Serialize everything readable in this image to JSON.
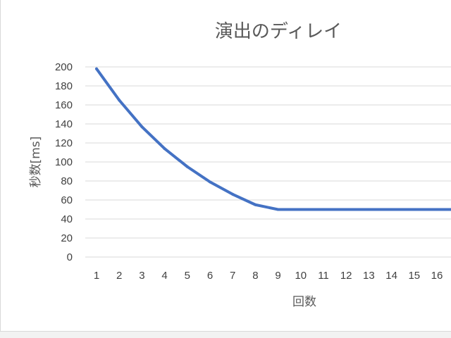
{
  "chart_data": {
    "type": "line",
    "title": "演出のディレイ",
    "xlabel": "回数",
    "ylabel": "秒数[ms]",
    "categories": [
      "1",
      "2",
      "3",
      "4",
      "5",
      "6",
      "7",
      "8",
      "9",
      "10",
      "11",
      "12",
      "13",
      "14",
      "15",
      "16"
    ],
    "series": [
      {
        "values": [
          198,
          165,
          137,
          114,
          95,
          79,
          66,
          55,
          50,
          50,
          50,
          50,
          50,
          50,
          50,
          50
        ],
        "color": "#4472c4"
      }
    ],
    "ylim": [
      0,
      200
    ],
    "yticks": [
      "0",
      "20",
      "40",
      "60",
      "80",
      "100",
      "120",
      "140",
      "160",
      "180",
      "200"
    ],
    "grid": true,
    "legend": "none"
  }
}
